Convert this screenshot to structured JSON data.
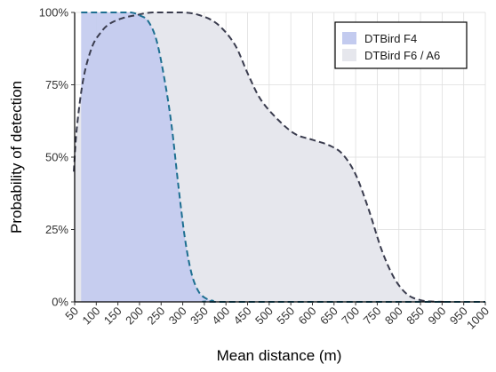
{
  "chart_data": {
    "type": "area",
    "xlabel": "Mean distance (m)",
    "ylabel": "Probability of detection",
    "x_ticks": [
      50,
      100,
      150,
      200,
      250,
      300,
      350,
      400,
      450,
      500,
      550,
      600,
      650,
      700,
      750,
      800,
      850,
      900,
      950,
      1000
    ],
    "y_ticks": [
      0,
      0.25,
      0.5,
      0.75,
      1.0
    ],
    "y_tick_labels": [
      "0%",
      "25%",
      "50%",
      "75%",
      "100%"
    ],
    "xlim": [
      50,
      1000
    ],
    "ylim": [
      0,
      1
    ],
    "grid": true,
    "legend_position": "top-right",
    "series": [
      {
        "name": "DTBird F6 / A6",
        "fill": "#e6e7ed",
        "line": "#3a3c4e",
        "points": [
          [
            48,
            0.45
          ],
          [
            55,
            0.6
          ],
          [
            70,
            0.77
          ],
          [
            90,
            0.88
          ],
          [
            110,
            0.93
          ],
          [
            130,
            0.96
          ],
          [
            160,
            0.98
          ],
          [
            190,
            0.99
          ],
          [
            230,
            1.0
          ],
          [
            300,
            1.0
          ],
          [
            340,
            0.99
          ],
          [
            380,
            0.96
          ],
          [
            420,
            0.89
          ],
          [
            450,
            0.79
          ],
          [
            480,
            0.7
          ],
          [
            520,
            0.63
          ],
          [
            560,
            0.58
          ],
          [
            600,
            0.56
          ],
          [
            640,
            0.54
          ],
          [
            670,
            0.51
          ],
          [
            700,
            0.44
          ],
          [
            730,
            0.32
          ],
          [
            760,
            0.18
          ],
          [
            790,
            0.08
          ],
          [
            820,
            0.025
          ],
          [
            850,
            0.006
          ],
          [
            880,
            0.001
          ],
          [
            920,
            0.0
          ]
        ]
      },
      {
        "name": "DTBird F4",
        "fill": "#c3cbef",
        "line": "#1d6f91",
        "points": [
          [
            65,
            1.0
          ],
          [
            100,
            1.0
          ],
          [
            150,
            1.0
          ],
          [
            180,
            1.0
          ],
          [
            200,
            0.99
          ],
          [
            220,
            0.97
          ],
          [
            240,
            0.9
          ],
          [
            260,
            0.75
          ],
          [
            275,
            0.6
          ],
          [
            290,
            0.4
          ],
          [
            305,
            0.22
          ],
          [
            320,
            0.1
          ],
          [
            335,
            0.04
          ],
          [
            350,
            0.015
          ],
          [
            370,
            0.004
          ],
          [
            400,
            0.0
          ],
          [
            1000,
            0.0
          ]
        ]
      }
    ]
  }
}
